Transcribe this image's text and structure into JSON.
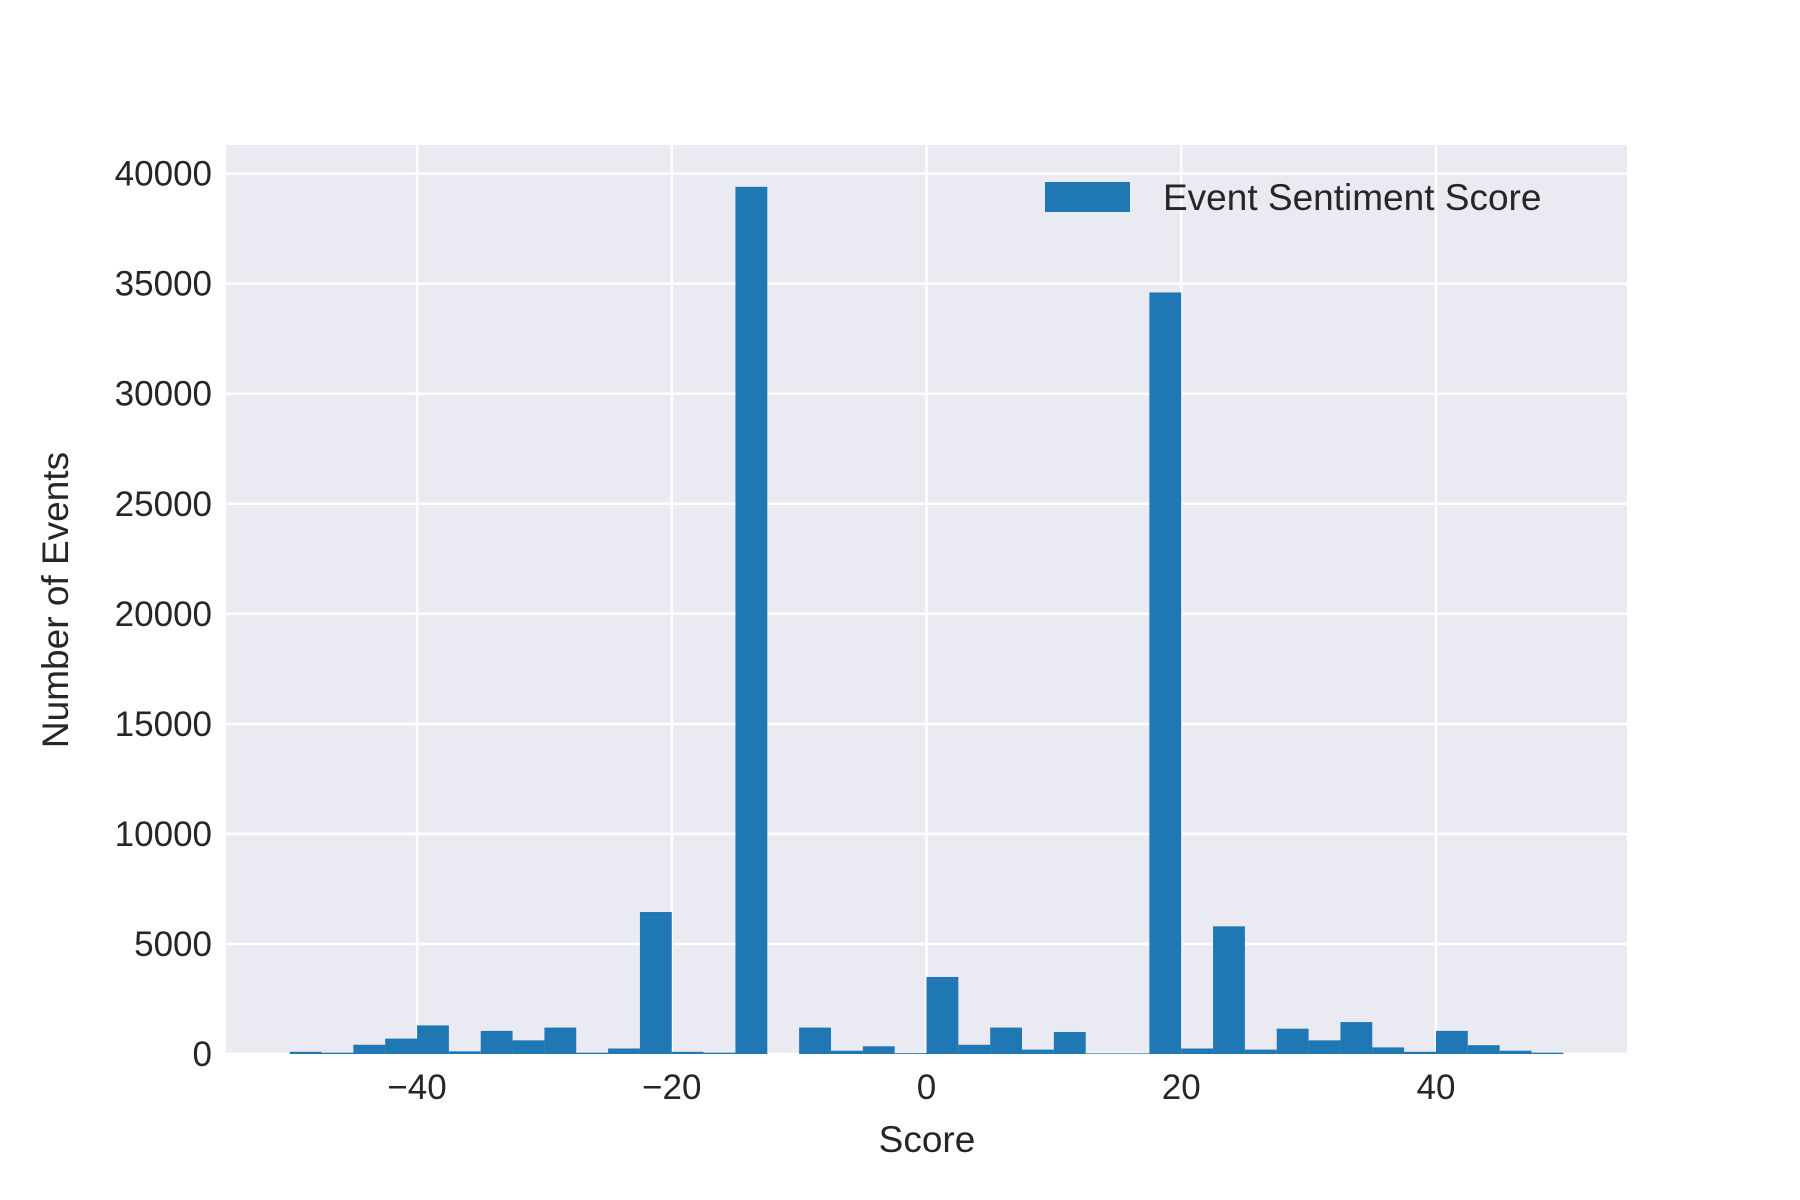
{
  "chart_data": {
    "type": "bar",
    "xlabel": "Score",
    "ylabel": "Number of Events",
    "xlim": [
      -55,
      55
    ],
    "ylim": [
      0,
      41300
    ],
    "xticks": [
      -40,
      -20,
      0,
      20,
      40
    ],
    "xtick_labels": [
      "−40",
      "−20",
      "0",
      "20",
      "40"
    ],
    "yticks": [
      0,
      5000,
      10000,
      15000,
      20000,
      25000,
      30000,
      35000,
      40000
    ],
    "ytick_labels": [
      "0",
      "5000",
      "10000",
      "15000",
      "20000",
      "25000",
      "30000",
      "35000",
      "40000"
    ],
    "grid": true,
    "legend_position": "top-right",
    "background_color": "#eaeaf2",
    "grid_color": "#ffffff",
    "bar_color": "#1f77b4",
    "series": [
      {
        "name": "Event Sentiment Score",
        "bin_edges": [
          -50,
          -47.5,
          -45,
          -42.5,
          -40,
          -37.5,
          -35,
          -32.5,
          -30,
          -27.5,
          -25,
          -22.5,
          -20,
          -17.5,
          -15,
          -12.5,
          -10,
          -7.5,
          -5,
          -2.5,
          0,
          2.5,
          5,
          7.5,
          10,
          12.5,
          15,
          17.5,
          20,
          22.5,
          25,
          27.5,
          30,
          32.5,
          35,
          37.5,
          40,
          42.5,
          45,
          47.5,
          50
        ],
        "counts": [
          100,
          60,
          420,
          700,
          1300,
          120,
          1050,
          620,
          1200,
          60,
          250,
          6450,
          100,
          60,
          39400,
          0,
          1200,
          150,
          350,
          40,
          3500,
          420,
          1200,
          200,
          1000,
          30,
          30,
          34600,
          250,
          5800,
          200,
          1150,
          620,
          1450,
          300,
          100,
          1050,
          400,
          150,
          60
        ]
      }
    ]
  }
}
